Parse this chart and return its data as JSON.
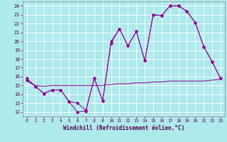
{
  "xlabel": "Windchill (Refroidissement éolien,°C)",
  "line_color": "#990099",
  "bg_color": "#aeeaea",
  "grid_color": "#ccffff",
  "xlim": [
    -0.5,
    23.5
  ],
  "ylim": [
    11.5,
    24.5
  ],
  "yticks": [
    12,
    13,
    14,
    15,
    16,
    17,
    18,
    19,
    20,
    21,
    22,
    23,
    24
  ],
  "xticks": [
    0,
    1,
    2,
    3,
    4,
    5,
    6,
    7,
    8,
    9,
    10,
    11,
    12,
    13,
    14,
    15,
    16,
    17,
    18,
    19,
    20,
    21,
    22,
    23
  ],
  "line1_x": [
    0,
    1,
    2,
    3,
    4,
    5,
    6,
    7,
    8,
    9,
    10,
    11,
    12,
    13,
    14,
    15,
    16,
    17,
    18,
    19,
    20,
    21,
    22,
    23
  ],
  "line1_y": [
    15.8,
    14.9,
    14.1,
    14.5,
    14.5,
    13.2,
    12.0,
    12.1,
    15.8,
    13.3,
    20.0,
    21.4,
    19.5,
    21.1,
    17.8,
    23.0,
    22.9,
    24.0,
    24.0,
    23.4,
    22.1,
    19.4,
    17.7,
    15.8
  ],
  "line2_x": [
    0,
    1,
    2,
    3,
    4,
    5,
    6,
    7,
    8,
    9,
    10,
    11,
    12,
    13,
    14,
    15,
    16,
    17,
    18,
    19,
    20,
    21,
    22,
    23
  ],
  "line2_y": [
    15.6,
    14.9,
    14.1,
    14.5,
    14.5,
    13.2,
    13.0,
    12.2,
    15.8,
    13.3,
    19.8,
    21.4,
    19.5,
    21.1,
    17.8,
    23.0,
    22.9,
    24.0,
    24.0,
    23.4,
    22.1,
    19.4,
    17.7,
    15.8
  ],
  "line3_x": [
    0,
    1,
    2,
    3,
    4,
    5,
    6,
    7,
    8,
    9,
    10,
    11,
    12,
    13,
    14,
    15,
    16,
    17,
    18,
    19,
    20,
    21,
    22,
    23
  ],
  "line3_y": [
    15.5,
    15.0,
    14.9,
    15.0,
    15.0,
    15.0,
    15.0,
    15.0,
    15.0,
    15.0,
    15.1,
    15.2,
    15.2,
    15.3,
    15.3,
    15.4,
    15.4,
    15.5,
    15.5,
    15.5,
    15.5,
    15.5,
    15.6,
    15.7
  ],
  "marker": "D",
  "marker_size": 1.8,
  "linewidth": 0.7
}
